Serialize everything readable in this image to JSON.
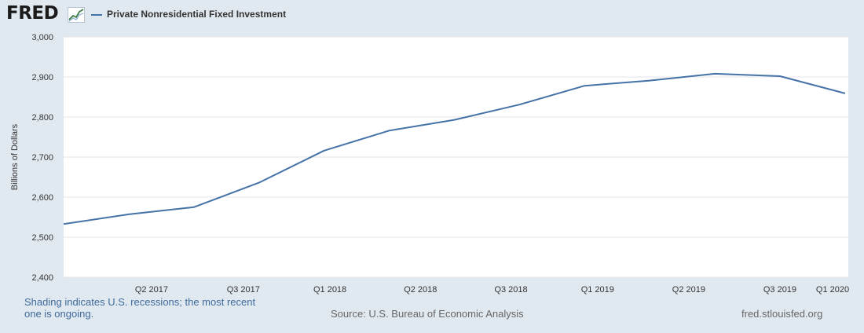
{
  "header": {
    "logo_text": "FRED",
    "logo_icon": "line-chart-icon",
    "legend_label": "Private Nonresidential Fixed Investment"
  },
  "footer": {
    "note": "Shading indicates U.S. recessions; the most recent one is ongoing.",
    "source": "Source: U.S. Bureau of Economic Analysis",
    "credit": "fred.stlouisfed.org"
  },
  "colors": {
    "page_background": "#e1e9f0",
    "plot_background": "#ffffff",
    "series_line": "#4572a7",
    "grid": "#e6e6e6",
    "note_text": "#3e6a9c"
  },
  "chart_data": {
    "type": "line",
    "title": "",
    "xlabel": "",
    "ylabel": "Billions of Dollars",
    "ylim": [
      2400,
      3000
    ],
    "yticks": [
      "2,400",
      "2,500",
      "2,600",
      "2,700",
      "2,800",
      "2,900",
      "3,000"
    ],
    "ytick_values": [
      2400,
      2500,
      2600,
      2700,
      2800,
      2900,
      3000
    ],
    "xticks": [
      "Q2 2017",
      "Q3 2017",
      "Q1 2018",
      "Q2 2018",
      "Q3 2018",
      "Q1 2019",
      "Q2 2019",
      "Q3 2019",
      "Q1 2020"
    ],
    "grid": true,
    "legend_position": "top-left",
    "series": [
      {
        "name": "Private Nonresidential Fixed Investment",
        "x": [
          0,
          1,
          2,
          3,
          4,
          5,
          6,
          7,
          8,
          9,
          10,
          11,
          12
        ],
        "values": [
          2533,
          2557,
          2575,
          2636,
          2716,
          2766,
          2793,
          2831,
          2878,
          2891,
          2908,
          2902,
          2859
        ]
      }
    ]
  }
}
